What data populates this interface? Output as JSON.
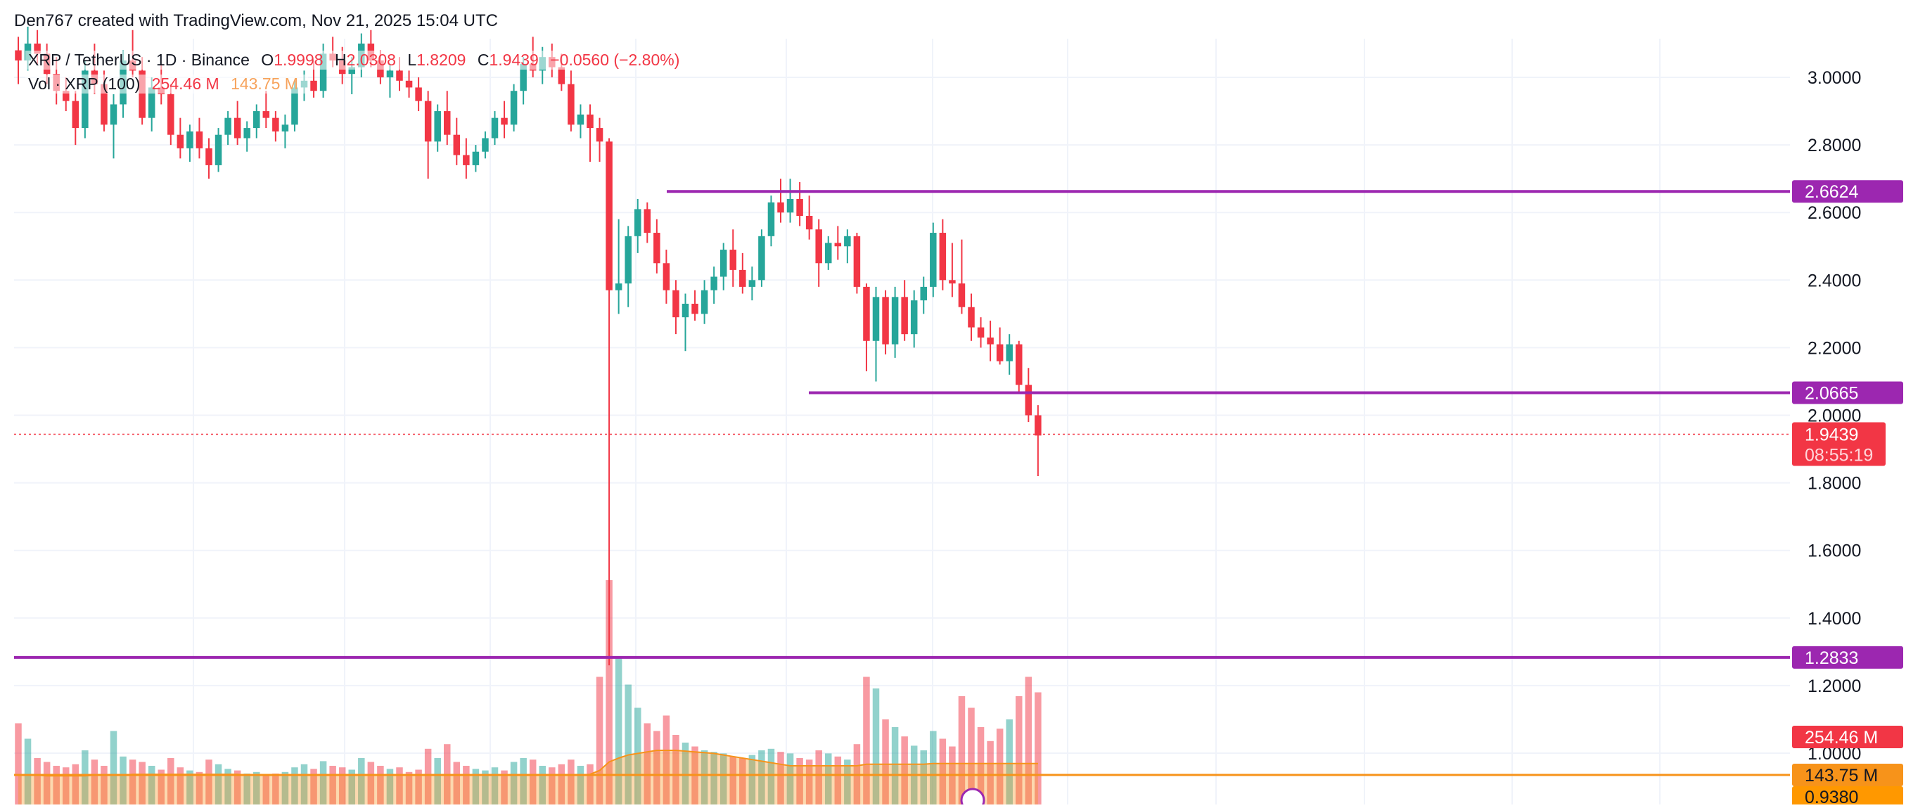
{
  "credit": "Den767 created with TradingView.com, Nov 21, 2025 15:04 UTC",
  "legend": {
    "symbol": "XRP / TetherUS · 1D · Binance",
    "o_label": "O",
    "o_value": "1.9998",
    "h_label": "H",
    "h_value": "2.0308",
    "l_label": "L",
    "l_value": "1.8209",
    "c_label": "C",
    "c_value": "1.9439",
    "change": "−0.0560 (−2.80%)",
    "vol_label": "Vol · XRP (100)",
    "vol_value": "254.46 M",
    "vol_ma_value": "143.75 M"
  },
  "colors": {
    "up": "#26a69a",
    "down": "#f23645",
    "level": "#9c27b0",
    "ma": "#f7931a",
    "grid": "#f0f3fa",
    "axis_text": "#131722"
  },
  "chart_data": {
    "type": "candlestick",
    "price_axis": {
      "ticks": [
        "3.0000",
        "2.8000",
        "2.6000",
        "2.4000",
        "2.2000",
        "2.0000",
        "1.8000",
        "1.6000",
        "1.4000",
        "1.2000",
        "1.0000"
      ],
      "range": [
        0.73,
        3.2
      ]
    },
    "horizontal_levels": [
      {
        "value": 2.6624,
        "label": "2.6624"
      },
      {
        "value": 2.0665,
        "label": "2.0665"
      },
      {
        "value": 1.2833,
        "label": "1.2833"
      }
    ],
    "last_price": {
      "value": 1.9439,
      "label": "1.9439",
      "countdown": "08:55:19"
    },
    "volume_labels": {
      "volume": "254.46 M",
      "volume_ma": "143.75 M",
      "other": "0.9380"
    },
    "candles": [
      [
        3.08,
        3.12,
        2.98,
        3.05,
        105
      ],
      [
        3.05,
        3.15,
        3.02,
        3.1,
        85
      ],
      [
        3.1,
        3.14,
        3.04,
        3.07,
        60
      ],
      [
        3.07,
        3.1,
        2.98,
        3.01,
        55
      ],
      [
        3.01,
        3.06,
        2.92,
        2.96,
        50
      ],
      [
        2.96,
        3.0,
        2.9,
        2.93,
        48
      ],
      [
        2.93,
        2.96,
        2.8,
        2.85,
        52
      ],
      [
        2.85,
        3.05,
        2.82,
        3.02,
        70
      ],
      [
        3.02,
        3.1,
        2.95,
        2.98,
        58
      ],
      [
        2.98,
        3.02,
        2.84,
        2.86,
        50
      ],
      [
        2.86,
        2.95,
        2.76,
        2.92,
        95
      ],
      [
        2.92,
        3.08,
        2.88,
        3.05,
        62
      ],
      [
        3.05,
        3.14,
        3.0,
        3.02,
        58
      ],
      [
        3.02,
        3.06,
        2.86,
        2.88,
        55
      ],
      [
        2.88,
        3.0,
        2.84,
        2.97,
        50
      ],
      [
        2.97,
        3.04,
        2.92,
        2.95,
        45
      ],
      [
        2.95,
        2.98,
        2.8,
        2.83,
        60
      ],
      [
        2.83,
        2.88,
        2.76,
        2.79,
        48
      ],
      [
        2.79,
        2.86,
        2.75,
        2.84,
        44
      ],
      [
        2.84,
        2.88,
        2.76,
        2.79,
        42
      ],
      [
        2.79,
        2.82,
        2.7,
        2.74,
        58
      ],
      [
        2.74,
        2.85,
        2.72,
        2.83,
        52
      ],
      [
        2.83,
        2.9,
        2.8,
        2.88,
        46
      ],
      [
        2.88,
        2.93,
        2.8,
        2.82,
        44
      ],
      [
        2.82,
        2.87,
        2.78,
        2.85,
        40
      ],
      [
        2.85,
        2.92,
        2.82,
        2.9,
        42
      ],
      [
        2.9,
        2.96,
        2.85,
        2.88,
        38
      ],
      [
        2.88,
        2.9,
        2.81,
        2.84,
        40
      ],
      [
        2.84,
        2.89,
        2.79,
        2.86,
        42
      ],
      [
        2.86,
        2.99,
        2.84,
        2.97,
        48
      ],
      [
        2.97,
        3.02,
        2.93,
        2.99,
        52
      ],
      [
        2.99,
        3.05,
        2.94,
        2.96,
        46
      ],
      [
        2.96,
        3.1,
        2.94,
        3.07,
        56
      ],
      [
        3.07,
        3.12,
        3.03,
        3.05,
        50
      ],
      [
        3.05,
        3.09,
        2.98,
        3.01,
        48
      ],
      [
        3.01,
        3.06,
        2.95,
        3.03,
        45
      ],
      [
        3.03,
        3.13,
        3.0,
        3.1,
        60
      ],
      [
        3.1,
        3.14,
        3.03,
        3.05,
        55
      ],
      [
        3.05,
        3.08,
        2.98,
        3.0,
        50
      ],
      [
        3.0,
        3.04,
        2.94,
        3.02,
        46
      ],
      [
        3.02,
        3.06,
        2.96,
        2.99,
        48
      ],
      [
        2.99,
        3.02,
        2.94,
        2.97,
        42
      ],
      [
        2.97,
        3.0,
        2.9,
        2.93,
        45
      ],
      [
        2.93,
        2.96,
        2.7,
        2.81,
        72
      ],
      [
        2.81,
        2.92,
        2.78,
        2.9,
        60
      ],
      [
        2.9,
        2.96,
        2.8,
        2.83,
        78
      ],
      [
        2.83,
        2.88,
        2.74,
        2.77,
        55
      ],
      [
        2.77,
        2.82,
        2.7,
        2.74,
        50
      ],
      [
        2.74,
        2.8,
        2.72,
        2.78,
        46
      ],
      [
        2.78,
        2.84,
        2.76,
        2.82,
        44
      ],
      [
        2.82,
        2.9,
        2.8,
        2.88,
        48
      ],
      [
        2.88,
        2.93,
        2.82,
        2.86,
        44
      ],
      [
        2.86,
        2.98,
        2.84,
        2.96,
        55
      ],
      [
        2.96,
        3.06,
        2.92,
        3.04,
        60
      ],
      [
        3.04,
        3.12,
        3.0,
        3.02,
        58
      ],
      [
        3.02,
        3.09,
        2.98,
        3.06,
        50
      ],
      [
        3.06,
        3.1,
        3.0,
        3.03,
        48
      ],
      [
        3.03,
        3.07,
        2.96,
        2.98,
        52
      ],
      [
        2.98,
        3.02,
        2.84,
        2.86,
        58
      ],
      [
        2.86,
        2.92,
        2.82,
        2.89,
        50
      ],
      [
        2.89,
        2.92,
        2.75,
        2.85,
        52
      ],
      [
        2.85,
        2.88,
        2.75,
        2.81,
        165
      ],
      [
        2.81,
        2.82,
        1.26,
        2.37,
        290
      ],
      [
        2.37,
        2.58,
        2.3,
        2.39,
        190
      ],
      [
        2.39,
        2.56,
        2.32,
        2.53,
        155
      ],
      [
        2.53,
        2.64,
        2.48,
        2.61,
        125
      ],
      [
        2.61,
        2.63,
        2.51,
        2.54,
        105
      ],
      [
        2.54,
        2.58,
        2.42,
        2.45,
        95
      ],
      [
        2.45,
        2.49,
        2.33,
        2.37,
        115
      ],
      [
        2.37,
        2.4,
        2.24,
        2.29,
        90
      ],
      [
        2.29,
        2.36,
        2.19,
        2.33,
        80
      ],
      [
        2.33,
        2.37,
        2.28,
        2.3,
        75
      ],
      [
        2.3,
        2.4,
        2.27,
        2.37,
        70
      ],
      [
        2.37,
        2.44,
        2.33,
        2.41,
        68
      ],
      [
        2.41,
        2.51,
        2.37,
        2.49,
        66
      ],
      [
        2.49,
        2.55,
        2.38,
        2.43,
        62
      ],
      [
        2.43,
        2.48,
        2.36,
        2.38,
        60
      ],
      [
        2.38,
        2.44,
        2.34,
        2.4,
        64
      ],
      [
        2.4,
        2.55,
        2.38,
        2.53,
        70
      ],
      [
        2.53,
        2.65,
        2.5,
        2.63,
        72
      ],
      [
        2.63,
        2.7,
        2.57,
        2.6,
        68
      ],
      [
        2.6,
        2.7,
        2.57,
        2.64,
        66
      ],
      [
        2.64,
        2.69,
        2.56,
        2.59,
        60
      ],
      [
        2.59,
        2.65,
        2.52,
        2.55,
        58
      ],
      [
        2.55,
        2.58,
        2.38,
        2.45,
        70
      ],
      [
        2.45,
        2.53,
        2.43,
        2.51,
        66
      ],
      [
        2.51,
        2.56,
        2.46,
        2.5,
        62
      ],
      [
        2.5,
        2.55,
        2.45,
        2.53,
        58
      ],
      [
        2.53,
        2.54,
        2.36,
        2.38,
        78
      ],
      [
        2.38,
        2.39,
        2.13,
        2.22,
        165
      ],
      [
        2.22,
        2.38,
        2.1,
        2.35,
        150
      ],
      [
        2.35,
        2.37,
        2.18,
        2.21,
        110
      ],
      [
        2.21,
        2.38,
        2.17,
        2.35,
        100
      ],
      [
        2.35,
        2.4,
        2.22,
        2.24,
        88
      ],
      [
        2.24,
        2.37,
        2.2,
        2.34,
        76
      ],
      [
        2.34,
        2.41,
        2.3,
        2.38,
        70
      ],
      [
        2.38,
        2.57,
        2.35,
        2.54,
        95
      ],
      [
        2.54,
        2.58,
        2.37,
        2.4,
        85
      ],
      [
        2.4,
        2.51,
        2.35,
        2.39,
        75
      ],
      [
        2.39,
        2.52,
        2.3,
        2.32,
        140
      ],
      [
        2.32,
        2.36,
        2.22,
        2.26,
        125
      ],
      [
        2.26,
        2.29,
        2.2,
        2.23,
        100
      ],
      [
        2.23,
        2.28,
        2.16,
        2.21,
        82
      ],
      [
        2.21,
        2.26,
        2.15,
        2.16,
        98
      ],
      [
        2.16,
        2.24,
        2.12,
        2.21,
        110
      ],
      [
        2.21,
        2.22,
        2.07,
        2.09,
        140
      ],
      [
        2.09,
        2.14,
        1.98,
        2.0,
        165
      ],
      [
        2.0,
        2.03,
        1.82,
        1.94,
        145
      ]
    ],
    "volume_ma": [
      38,
      38,
      38,
      37,
      37,
      37,
      37,
      37,
      38,
      38,
      38,
      38,
      39,
      39,
      39,
      39,
      39,
      39,
      39,
      39,
      39,
      39,
      39,
      39,
      38,
      38,
      38,
      38,
      38,
      38,
      38,
      38,
      38,
      38,
      38,
      38,
      38,
      38,
      38,
      38,
      38,
      38,
      38,
      38,
      38,
      38,
      38,
      38,
      38,
      38,
      38,
      38,
      38,
      38,
      38,
      38,
      38,
      38,
      38,
      38,
      39,
      44,
      55,
      60,
      64,
      66,
      68,
      70,
      70,
      70,
      69,
      68,
      67,
      66,
      64,
      62,
      60,
      58,
      56,
      54,
      52,
      50,
      50,
      50,
      50,
      50,
      50,
      50,
      50,
      52,
      52,
      52,
      52,
      52,
      52,
      52,
      53,
      53,
      53,
      53,
      53,
      53,
      53,
      53,
      53,
      53,
      53,
      53
    ]
  }
}
